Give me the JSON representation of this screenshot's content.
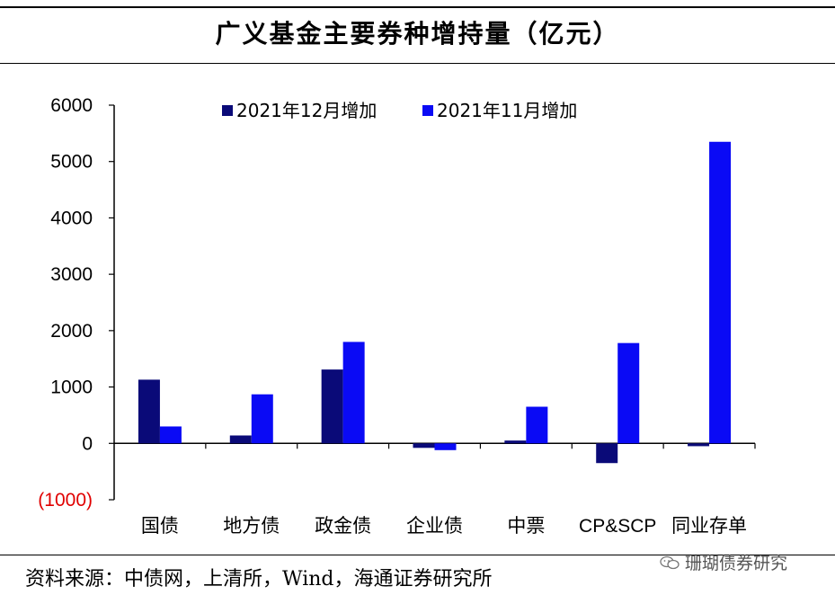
{
  "header": {
    "title": "广义基金主要券种增持量（亿元）"
  },
  "footer": {
    "source": "资料来源：中债网，上清所，Wind，海通证券研究所",
    "watermark": "珊瑚债券研究",
    "watermark_icon": "wechat-icon"
  },
  "colors": {
    "series_dec": "#0a0a78",
    "series_nov": "#0a0af5",
    "negative_tick": "#e00000"
  },
  "chart_data": {
    "type": "bar",
    "title": "广义基金主要券种增持量（亿元）",
    "categories": [
      "国债",
      "地方债",
      "政金债",
      "企业债",
      "中票",
      "CP&SCP",
      "同业存单"
    ],
    "series": [
      {
        "name": "2021年12月增加",
        "values": [
          1130,
          140,
          1310,
          -80,
          50,
          -350,
          -50
        ]
      },
      {
        "name": "2021年11月增加",
        "values": [
          300,
          870,
          1800,
          -120,
          650,
          1780,
          5350
        ]
      }
    ],
    "y_ticks": [
      "6000",
      "5000",
      "4000",
      "3000",
      "2000",
      "1000",
      "0",
      "(1000)"
    ],
    "ylim": [
      -1000,
      6000
    ],
    "grid": false,
    "legend_position": "top"
  }
}
